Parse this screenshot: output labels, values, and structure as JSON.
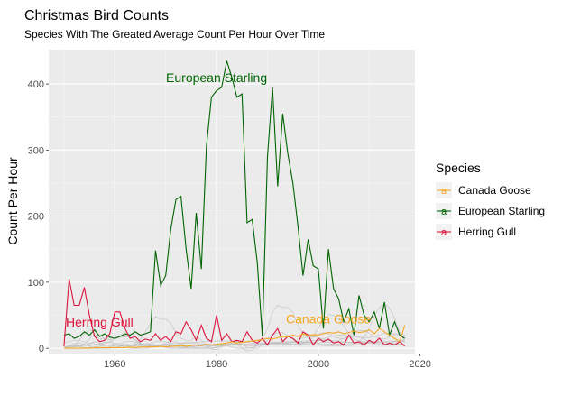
{
  "chart_data": {
    "type": "line",
    "title": "Christmas Bird Counts",
    "subtitle": "Species With The Greated Average Count Per Hour Over Time",
    "xlabel": "",
    "ylabel": "Count Per Hour",
    "xlim": [
      1947,
      2019
    ],
    "ylim": [
      -8,
      452
    ],
    "x_ticks": [
      1960,
      1980,
      2000,
      2020
    ],
    "y_ticks": [
      0,
      100,
      200,
      300,
      400
    ],
    "grid": true,
    "legend": {
      "title": "Species",
      "position": "right",
      "items": [
        {
          "label": "Canada Goose",
          "color": "#F5A623"
        },
        {
          "label": "European Starling",
          "color": "#006400"
        },
        {
          "label": "Herring Gull",
          "color": "#DC143C"
        }
      ]
    },
    "annotations": [
      {
        "text": "European Starling",
        "x": 1980,
        "y": 403,
        "color": "#006400"
      },
      {
        "text": "Herring Gull",
        "x": 1957,
        "y": 33,
        "color": "#DC143C"
      },
      {
        "text": "Canada Goose",
        "x": 2002,
        "y": 38,
        "color": "#F5A623"
      }
    ],
    "x": [
      1950,
      1951,
      1952,
      1953,
      1954,
      1955,
      1956,
      1957,
      1958,
      1959,
      1960,
      1961,
      1962,
      1963,
      1964,
      1965,
      1966,
      1967,
      1968,
      1969,
      1970,
      1971,
      1972,
      1973,
      1974,
      1975,
      1976,
      1977,
      1978,
      1979,
      1980,
      1981,
      1982,
      1983,
      1984,
      1985,
      1986,
      1987,
      1988,
      1989,
      1990,
      1991,
      1992,
      1993,
      1994,
      1995,
      1996,
      1997,
      1998,
      1999,
      2000,
      2001,
      2002,
      2003,
      2004,
      2005,
      2006,
      2007,
      2008,
      2009,
      2010,
      2011,
      2012,
      2013,
      2014,
      2015,
      2016,
      2017
    ],
    "series": [
      {
        "name": "European Starling",
        "color": "#006400",
        "values": [
          20,
          22,
          15,
          18,
          25,
          20,
          28,
          18,
          22,
          17,
          15,
          18,
          22,
          20,
          25,
          20,
          22,
          25,
          148,
          95,
          110,
          180,
          225,
          230,
          150,
          90,
          205,
          120,
          305,
          380,
          390,
          395,
          435,
          410,
          380,
          385,
          190,
          195,
          130,
          18,
          290,
          395,
          245,
          355,
          295,
          250,
          185,
          110,
          165,
          125,
          120,
          30,
          150,
          90,
          75,
          40,
          60,
          20,
          80,
          50,
          40,
          55,
          30,
          70,
          20,
          40,
          20,
          15
        ]
      },
      {
        "name": "Herring Gull",
        "color": "#DC143C",
        "values": [
          3,
          105,
          65,
          65,
          92,
          50,
          18,
          10,
          12,
          22,
          55,
          55,
          30,
          15,
          18,
          10,
          14,
          12,
          22,
          12,
          18,
          10,
          25,
          22,
          40,
          28,
          12,
          35,
          15,
          10,
          50,
          12,
          22,
          10,
          12,
          10,
          25,
          12,
          8,
          15,
          5,
          20,
          30,
          10,
          18,
          15,
          8,
          25,
          20,
          5,
          15,
          10,
          14,
          8,
          10,
          5,
          20,
          8,
          10,
          5,
          12,
          8,
          15,
          5,
          8,
          5,
          10,
          3
        ]
      },
      {
        "name": "Canada Goose",
        "color": "#F5A623",
        "values": [
          0,
          0,
          0,
          0,
          0,
          0,
          1,
          1,
          1,
          1,
          1,
          1,
          1,
          2,
          1,
          2,
          2,
          2,
          2,
          3,
          2,
          3,
          3,
          4,
          3,
          4,
          5,
          4,
          6,
          5,
          6,
          7,
          8,
          10,
          8,
          9,
          10,
          11,
          12,
          13,
          15,
          14,
          16,
          18,
          17,
          20,
          18,
          22,
          19,
          21,
          20,
          22,
          24,
          23,
          25,
          22,
          24,
          26,
          24,
          25,
          28,
          22,
          30,
          25,
          20,
          15,
          10,
          35
        ]
      },
      {
        "name": "",
        "color": "#bdbdbd",
        "values": [
          0,
          2,
          2,
          4,
          7,
          14,
          22,
          15,
          14,
          16,
          0,
          3,
          7,
          4,
          7,
          13,
          25,
          37,
          48,
          44,
          44,
          38,
          24,
          15,
          12,
          12,
          19,
          12,
          4,
          -1,
          -2,
          2,
          6,
          8,
          6,
          0,
          -4,
          -3,
          6,
          14,
          30,
          55,
          65,
          62,
          62,
          54,
          35,
          22,
          15,
          19,
          30,
          44,
          51,
          50,
          44,
          34,
          22,
          14,
          11,
          17,
          31,
          48,
          62,
          67,
          61,
          45,
          25,
          9
        ]
      },
      {
        "name": "",
        "color": "#bdbdbd",
        "values": [
          2,
          2,
          2,
          2,
          5,
          7,
          10,
          8,
          5,
          5,
          6,
          7,
          10,
          11,
          9,
          7,
          5,
          4,
          5,
          5,
          6,
          5,
          3,
          1,
          0,
          0,
          0,
          0,
          0,
          0,
          2,
          4,
          6,
          7,
          7,
          5,
          4,
          4,
          4,
          5,
          7,
          8,
          8,
          8,
          7,
          6,
          7,
          7,
          8,
          9,
          11,
          14,
          17,
          19,
          20,
          20,
          19,
          18,
          17,
          16,
          16,
          18,
          20,
          23,
          23,
          22,
          19,
          16
        ]
      },
      {
        "name": "",
        "color": "#bdbdbd",
        "values": [
          0,
          0,
          3,
          12,
          22,
          28,
          26,
          20,
          14,
          13,
          15,
          19,
          20,
          17,
          12,
          7,
          5,
          7,
          10,
          11,
          10,
          7,
          4,
          2,
          2,
          2,
          1,
          0,
          0,
          0,
          1,
          4,
          8,
          11,
          11,
          7,
          1,
          0,
          0,
          5,
          12,
          20,
          24,
          24,
          19,
          13,
          8,
          8,
          11,
          17,
          22,
          24,
          22,
          18,
          15,
          15,
          19,
          24,
          27,
          27,
          23,
          18,
          15,
          14,
          17,
          21,
          23,
          20
        ]
      },
      {
        "name": "",
        "color": "#bdbdbd",
        "values": [
          8,
          10,
          12,
          12,
          10,
          8,
          7,
          6,
          7,
          10,
          14,
          17,
          18,
          17,
          13,
          8,
          4,
          2,
          2,
          5,
          8,
          10,
          10,
          7,
          3,
          0,
          0,
          0,
          1,
          3,
          5,
          6,
          4,
          2,
          0,
          0,
          0,
          1,
          4,
          6,
          7,
          7,
          6,
          6,
          6,
          9,
          12,
          16,
          18,
          18,
          16,
          14,
          12,
          11,
          12,
          15,
          17,
          18,
          17,
          14,
          10,
          6,
          5,
          5,
          7,
          10,
          12,
          13
        ]
      },
      {
        "name": "",
        "color": "#bdbdbd",
        "values": [
          0,
          3,
          4,
          4,
          4,
          4,
          5,
          7,
          9,
          9,
          8,
          6,
          4,
          3,
          4,
          6,
          7,
          7,
          5,
          3,
          1,
          0,
          0,
          0,
          1,
          2,
          3,
          3,
          3,
          4,
          4,
          5,
          6,
          7,
          7,
          6,
          6,
          5,
          6,
          6,
          7,
          8,
          8,
          8,
          7,
          6,
          6,
          6,
          6,
          5,
          5,
          4,
          4,
          4,
          4,
          4,
          4,
          5,
          6,
          7,
          8,
          8,
          7,
          7,
          6,
          6,
          6,
          6
        ]
      },
      {
        "name": "",
        "color": "#bdbdbd",
        "values": [
          2,
          4,
          4,
          3,
          1,
          0,
          0,
          0,
          0,
          0,
          1,
          3,
          4,
          5,
          6,
          6,
          5,
          4,
          3,
          2,
          3,
          4,
          5,
          7,
          8,
          8,
          7,
          7,
          6,
          6,
          6,
          6,
          6,
          6,
          5,
          5,
          4,
          4,
          5,
          6,
          6,
          7,
          7,
          8,
          8,
          9,
          9,
          9,
          9,
          8,
          7,
          6,
          6,
          6,
          6,
          6,
          7,
          7,
          8,
          9,
          9,
          9,
          9,
          9,
          8,
          7,
          6,
          6
        ]
      },
      {
        "name": "",
        "color": "#bdbdbd",
        "values": [
          0,
          0,
          0,
          0,
          1,
          1,
          2,
          3,
          4,
          4,
          4,
          4,
          4,
          3,
          3,
          3,
          3,
          3,
          4,
          5,
          6,
          7,
          8,
          8,
          9,
          9,
          9,
          10,
          10,
          11,
          11,
          11,
          11,
          11,
          10,
          9,
          9,
          8,
          8,
          8,
          8,
          9,
          9,
          10,
          10,
          10,
          10,
          9,
          9,
          9,
          8,
          9,
          9,
          9,
          9,
          9,
          9,
          9,
          10,
          10,
          10,
          10,
          10,
          10,
          10,
          10,
          10,
          10
        ]
      },
      {
        "name": "",
        "color": "#bdbdbd",
        "values": [
          0,
          4,
          7,
          8,
          6,
          3,
          0,
          0,
          0,
          2,
          4,
          4,
          2,
          0,
          0,
          0,
          0,
          1,
          3,
          4,
          3,
          1,
          0,
          0,
          0,
          2,
          4,
          5,
          5,
          4,
          3,
          3,
          4,
          5,
          6,
          6,
          6,
          6,
          6,
          7,
          8,
          8,
          9,
          9,
          9,
          10,
          10,
          11,
          11,
          12,
          12,
          12,
          12,
          11,
          11,
          10,
          9,
          9,
          9,
          8,
          8,
          9,
          9,
          10,
          10,
          11,
          11,
          11
        ]
      }
    ]
  }
}
